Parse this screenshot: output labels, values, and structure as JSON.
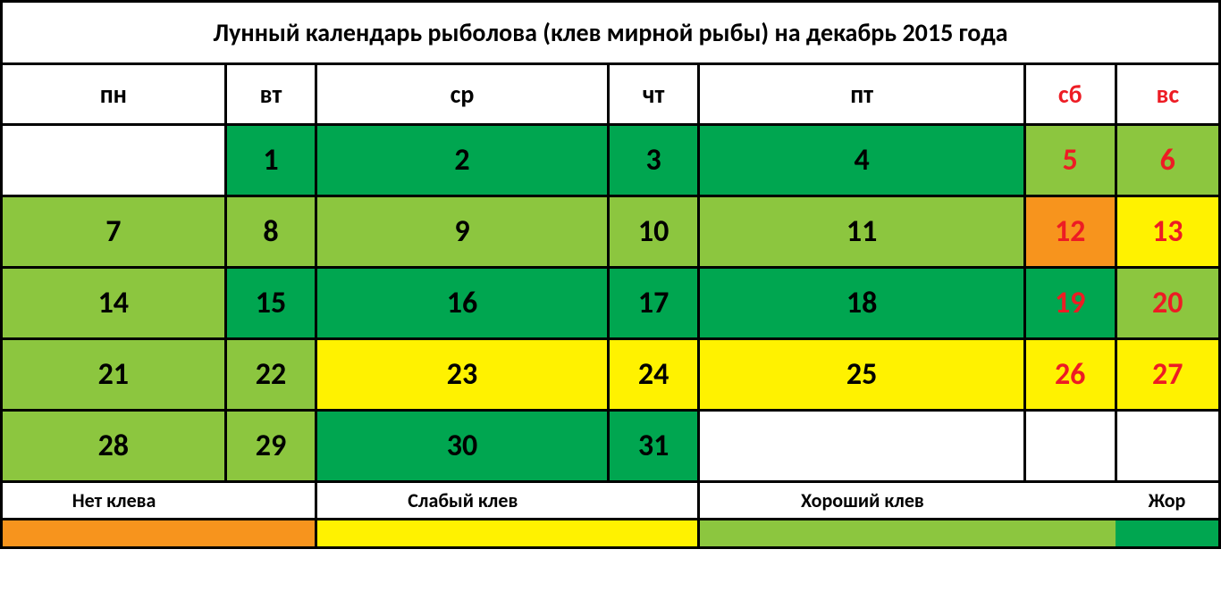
{
  "title": "Лунный календарь рыболова (клев мирной рыбы) на декабрь 2015 года",
  "colors": {
    "white": "#ffffff",
    "dark_green": "#00a650",
    "light_green": "#8cc63f",
    "yellow": "#fff200",
    "orange": "#f7941d",
    "black": "#000000",
    "red": "#ed1c24"
  },
  "day_headers": [
    {
      "label": "пн",
      "color": "#000000"
    },
    {
      "label": "вт",
      "color": "#000000"
    },
    {
      "label": "ср",
      "color": "#000000"
    },
    {
      "label": "чт",
      "color": "#000000"
    },
    {
      "label": "пт",
      "color": "#000000"
    },
    {
      "label": "сб",
      "color": "#ed1c24"
    },
    {
      "label": "вс",
      "color": "#ed1c24"
    }
  ],
  "weeks": [
    [
      {
        "day": "",
        "bg": "#ffffff",
        "fg": "#000000"
      },
      {
        "day": "1",
        "bg": "#00a650",
        "fg": "#000000"
      },
      {
        "day": "2",
        "bg": "#00a650",
        "fg": "#000000"
      },
      {
        "day": "3",
        "bg": "#00a650",
        "fg": "#000000"
      },
      {
        "day": "4",
        "bg": "#00a650",
        "fg": "#000000"
      },
      {
        "day": "5",
        "bg": "#8cc63f",
        "fg": "#ed1c24"
      },
      {
        "day": "6",
        "bg": "#8cc63f",
        "fg": "#ed1c24"
      }
    ],
    [
      {
        "day": "7",
        "bg": "#8cc63f",
        "fg": "#000000"
      },
      {
        "day": "8",
        "bg": "#8cc63f",
        "fg": "#000000"
      },
      {
        "day": "9",
        "bg": "#8cc63f",
        "fg": "#000000"
      },
      {
        "day": "10",
        "bg": "#8cc63f",
        "fg": "#000000"
      },
      {
        "day": "11",
        "bg": "#8cc63f",
        "fg": "#000000"
      },
      {
        "day": "12",
        "bg": "#f7941d",
        "fg": "#ed1c24"
      },
      {
        "day": "13",
        "bg": "#fff200",
        "fg": "#ed1c24"
      }
    ],
    [
      {
        "day": "14",
        "bg": "#8cc63f",
        "fg": "#000000"
      },
      {
        "day": "15",
        "bg": "#00a650",
        "fg": "#000000"
      },
      {
        "day": "16",
        "bg": "#00a650",
        "fg": "#000000"
      },
      {
        "day": "17",
        "bg": "#00a650",
        "fg": "#000000"
      },
      {
        "day": "18",
        "bg": "#00a650",
        "fg": "#000000"
      },
      {
        "day": "19",
        "bg": "#00a650",
        "fg": "#ed1c24"
      },
      {
        "day": "20",
        "bg": "#8cc63f",
        "fg": "#ed1c24"
      }
    ],
    [
      {
        "day": "21",
        "bg": "#8cc63f",
        "fg": "#000000"
      },
      {
        "day": "22",
        "bg": "#8cc63f",
        "fg": "#000000"
      },
      {
        "day": "23",
        "bg": "#fff200",
        "fg": "#000000"
      },
      {
        "day": "24",
        "bg": "#fff200",
        "fg": "#000000"
      },
      {
        "day": "25",
        "bg": "#fff200",
        "fg": "#000000"
      },
      {
        "day": "26",
        "bg": "#fff200",
        "fg": "#ed1c24"
      },
      {
        "day": "27",
        "bg": "#fff200",
        "fg": "#ed1c24"
      }
    ],
    [
      {
        "day": "28",
        "bg": "#8cc63f",
        "fg": "#000000"
      },
      {
        "day": "29",
        "bg": "#8cc63f",
        "fg": "#000000"
      },
      {
        "day": "30",
        "bg": "#00a650",
        "fg": "#000000"
      },
      {
        "day": "31",
        "bg": "#00a650",
        "fg": "#000000"
      },
      {
        "day": "",
        "bg": "#ffffff",
        "fg": "#000000"
      },
      {
        "day": "",
        "bg": "#ffffff",
        "fg": "#000000"
      },
      {
        "day": "",
        "bg": "#ffffff",
        "fg": "#000000"
      }
    ]
  ],
  "legend": {
    "labels": [
      "Нет клева",
      "Слабый клев",
      "Хороший клев",
      "Жор"
    ],
    "colors": [
      "#f7941d",
      "#fff200",
      "#8cc63f",
      "#00a650"
    ]
  }
}
